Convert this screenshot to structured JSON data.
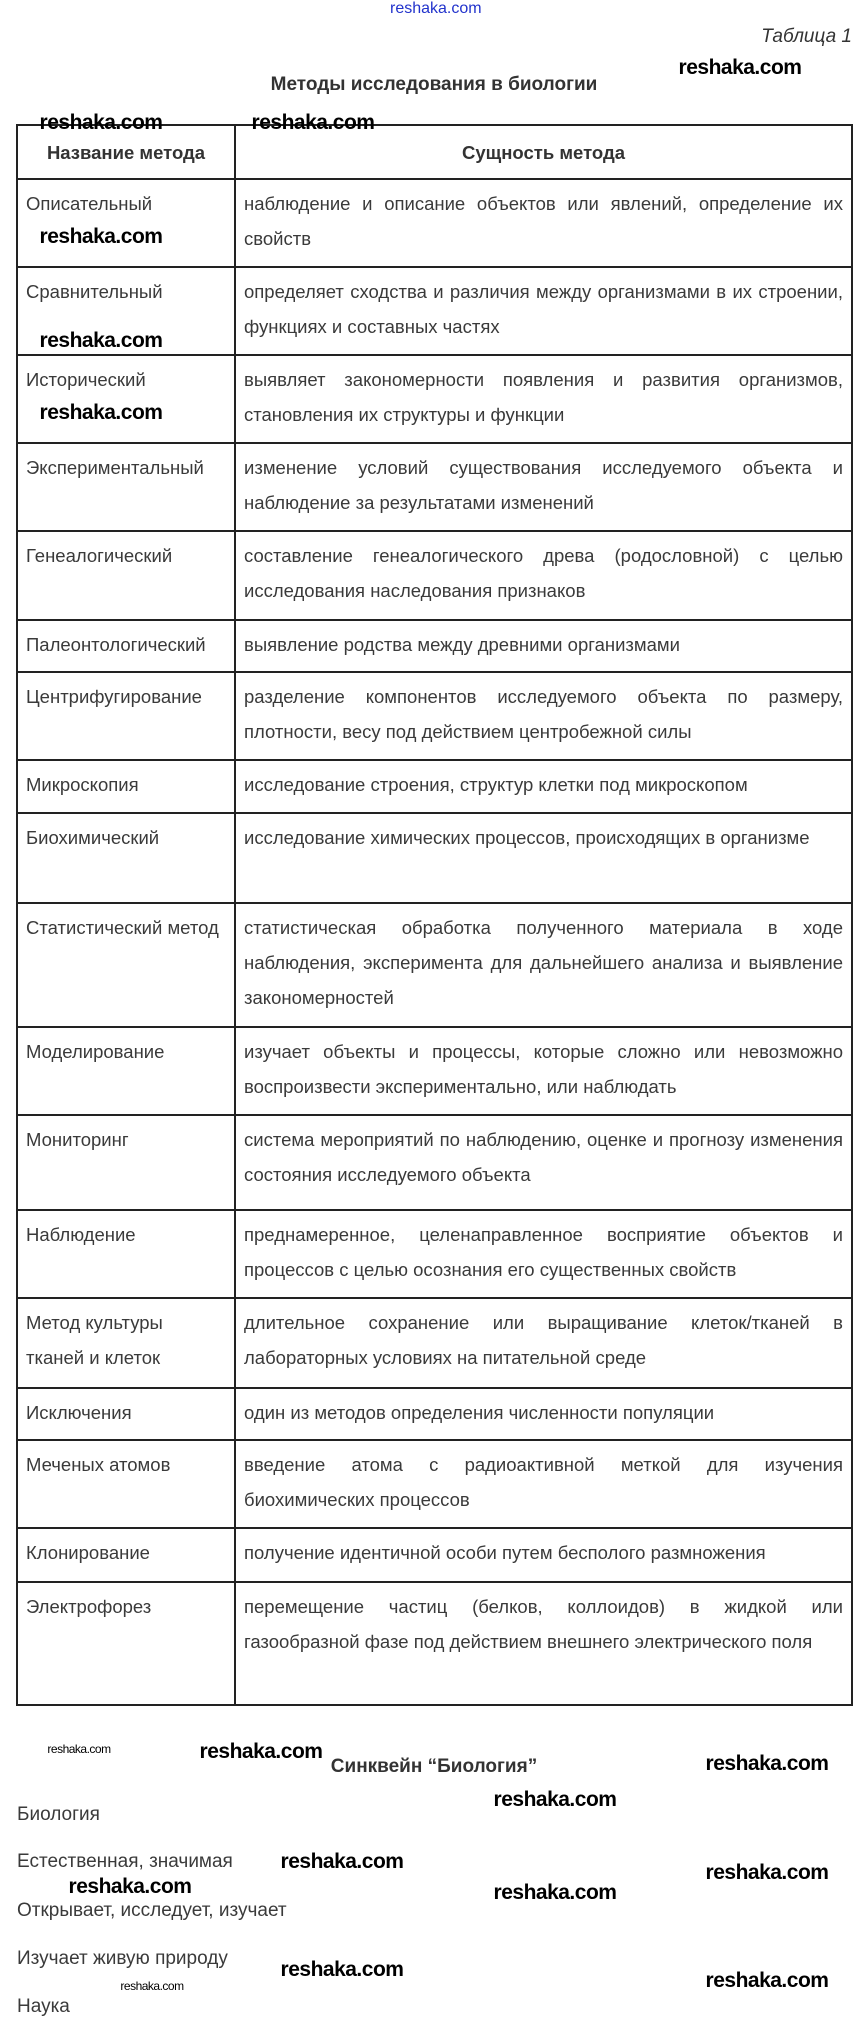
{
  "watermark": "reshaka.com",
  "caption": "Таблица 1",
  "title": "Методы исследования в биологии",
  "table": {
    "headers": [
      "Название метода",
      "Сущность метода"
    ],
    "rows": [
      [
        "Описательный",
        "наблюдение и описание объектов или явлений, определение их свойств"
      ],
      [
        "Сравнительный",
        "определяет сходства и различия между организмами в их строении, функциях и составных частях"
      ],
      [
        "Исторический",
        "выявляет закономерности появления и развития организмов, становления их структуры и функции"
      ],
      [
        "Экспериментальный",
        "изменение условий существования исследуемого объекта и наблюдение за результатами изменений"
      ],
      [
        "Генеалогический",
        "составление генеалогического древа (родословной) с целью исследования наследования признаков"
      ],
      [
        "Палеонтологический",
        "выявление родства между древними организмами"
      ],
      [
        "Центрифугирование",
        "разделение компонентов исследуемого объекта по размеру, плотности, весу под действием центробежной силы"
      ],
      [
        "Микроскопия",
        "исследование строения, структур клетки под микроскопом"
      ],
      [
        "Биохимический",
        "исследование химических процессов, происходящих в организме"
      ],
      [
        "Статистический метод",
        "статистическая обработка полученного материала в ходе наблюдения, эксперимента для дальнейшего анализа и выявление закономерностей"
      ],
      [
        "Моделирование",
        "изучает объекты и процессы, которые сложно или невозможно воспроизвести экспериментально, или наблюдать"
      ],
      [
        "Мониторинг",
        "система мероприятий по наблюдению, оценке и прогнозу изменения состояния исследуемого объекта"
      ],
      [
        "Наблюдение",
        "преднамеренное, целенаправленное восприятие объектов и процессов с целью осознания его существенных свойств"
      ],
      [
        "Метод культуры тканей и клеток",
        "длительное сохранение или выращивание клеток/тканей в лабораторных условиях на питательной среде"
      ],
      [
        "Исключения",
        "один из методов определения численности популяции"
      ],
      [
        "Меченых атомов",
        "введение атома с радиоактивной меткой для изучения биохимических процессов"
      ],
      [
        "Клонирование",
        "получение идентичной особи путем бесполого размножения"
      ],
      [
        "Электрофорез",
        "перемещение частиц (белков, коллоидов) в жидкой или газообразной фазе под действием внешнего электрического поля"
      ]
    ]
  },
  "syncwine": {
    "title": "Синквейн “Биология”",
    "lines": [
      "Биология",
      "Естественная, значимая",
      "Открывает, исследует, изучает",
      "Изучает живую природу",
      "Наука"
    ]
  }
}
